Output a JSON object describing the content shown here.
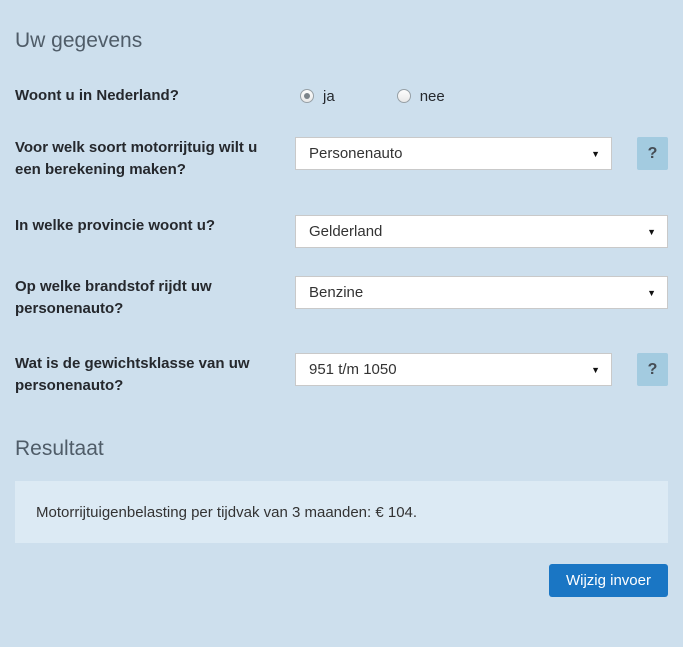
{
  "colors": {
    "background": "#cddfed",
    "result_box": "#dceaf4",
    "help_button": "#a3cbe0",
    "primary_button": "#1a76c4",
    "heading": "#4f5c68"
  },
  "form": {
    "title": "Uw gegevens",
    "help_label": "?",
    "questions": [
      {
        "label": "Woont u in Nederland?",
        "type": "radio",
        "options": [
          {
            "label": "ja",
            "selected": true
          },
          {
            "label": "nee",
            "selected": false
          }
        ]
      },
      {
        "label": "Voor welk soort motorrijtuig wilt u een berekening maken?",
        "type": "select",
        "value": "Personenauto",
        "has_help": true
      },
      {
        "label": "In welke provincie woont u?",
        "type": "select",
        "value": "Gelderland",
        "has_help": false
      },
      {
        "label": "Op welke brandstof rijdt uw personenauto?",
        "type": "select",
        "value": "Benzine",
        "has_help": false
      },
      {
        "label": "Wat is de gewichtsklasse van uw personenauto?",
        "type": "select",
        "value": "951 t/m 1050",
        "has_help": true
      }
    ]
  },
  "result": {
    "title": "Resultaat",
    "text": "Motorrijtuigenbelasting per tijdvak van 3 maanden: € 104."
  },
  "actions": {
    "change_button": "Wijzig invoer"
  }
}
